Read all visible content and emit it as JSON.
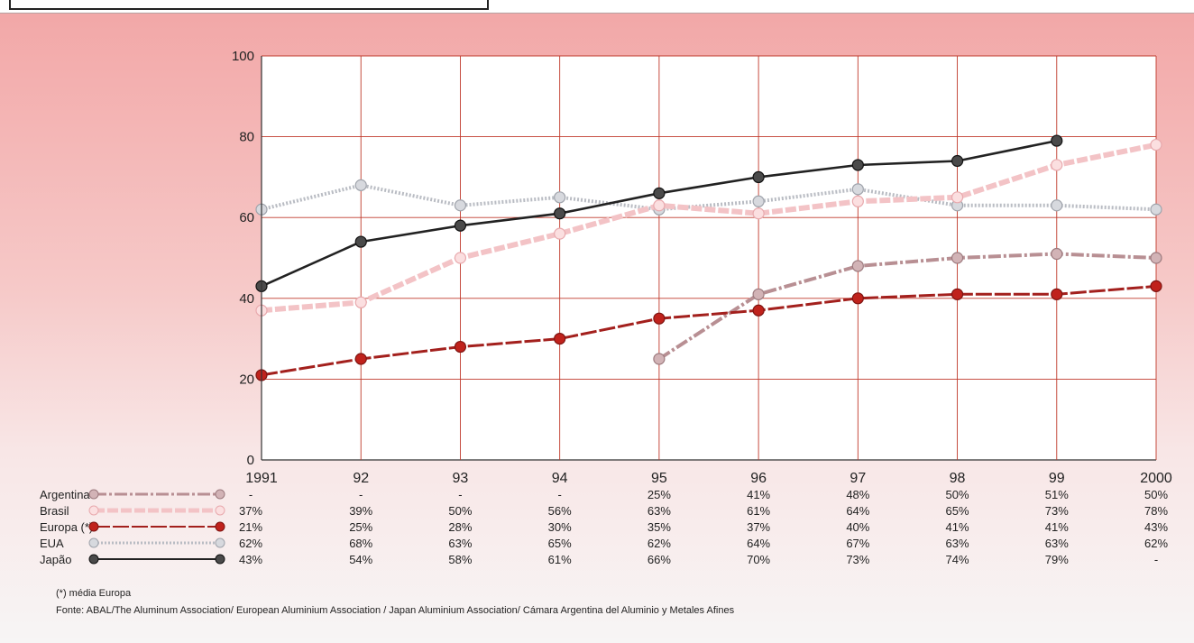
{
  "chart_data": {
    "type": "line",
    "x": [
      "1991",
      "92",
      "93",
      "94",
      "95",
      "96",
      "97",
      "98",
      "99",
      "2000"
    ],
    "ylim": [
      0,
      100
    ],
    "yticks": [
      0,
      20,
      40,
      60,
      80,
      100
    ],
    "grid": true,
    "legend_placement": "bottom-left (table rows)",
    "series": [
      {
        "name": "Argentina",
        "values": [
          null,
          null,
          null,
          null,
          25,
          41,
          48,
          50,
          51,
          50
        ],
        "labels": [
          "-",
          "-",
          "-",
          "-",
          "25%",
          "41%",
          "48%",
          "50%",
          "51%",
          "50%"
        ],
        "color": "#b88f93",
        "style": "dash-dot"
      },
      {
        "name": "Brasil",
        "values": [
          37,
          39,
          50,
          56,
          63,
          61,
          64,
          65,
          73,
          78
        ],
        "labels": [
          "37%",
          "39%",
          "50%",
          "56%",
          "63%",
          "61%",
          "64%",
          "65%",
          "73%",
          "78%"
        ],
        "color": "#f3c3c6",
        "style": "thick-dash"
      },
      {
        "name": "Europa (*)",
        "values": [
          21,
          25,
          28,
          30,
          35,
          37,
          40,
          41,
          41,
          43
        ],
        "labels": [
          "21%",
          "25%",
          "28%",
          "30%",
          "35%",
          "37%",
          "40%",
          "41%",
          "41%",
          "43%"
        ],
        "color": "#a3201d",
        "style": "long-dash"
      },
      {
        "name": "EUA",
        "values": [
          62,
          68,
          63,
          65,
          62,
          64,
          67,
          63,
          63,
          62
        ],
        "labels": [
          "62%",
          "68%",
          "63%",
          "65%",
          "62%",
          "64%",
          "67%",
          "63%",
          "63%",
          "62%"
        ],
        "color": "#b9bcc3",
        "style": "dotted"
      },
      {
        "name": "Japão",
        "values": [
          43,
          54,
          58,
          61,
          66,
          70,
          73,
          74,
          79,
          null
        ],
        "labels": [
          "43%",
          "54%",
          "58%",
          "61%",
          "66%",
          "70%",
          "73%",
          "74%",
          "79%",
          "-"
        ],
        "color": "#222222",
        "style": "solid"
      }
    ]
  },
  "footnote": "(*) média Europa",
  "source": "Fonte: ABAL/The Aluminum Association/ European Aluminium Association / Japan Aluminium Association/ Cámara Argentina del Aluminio y Metales Afines"
}
